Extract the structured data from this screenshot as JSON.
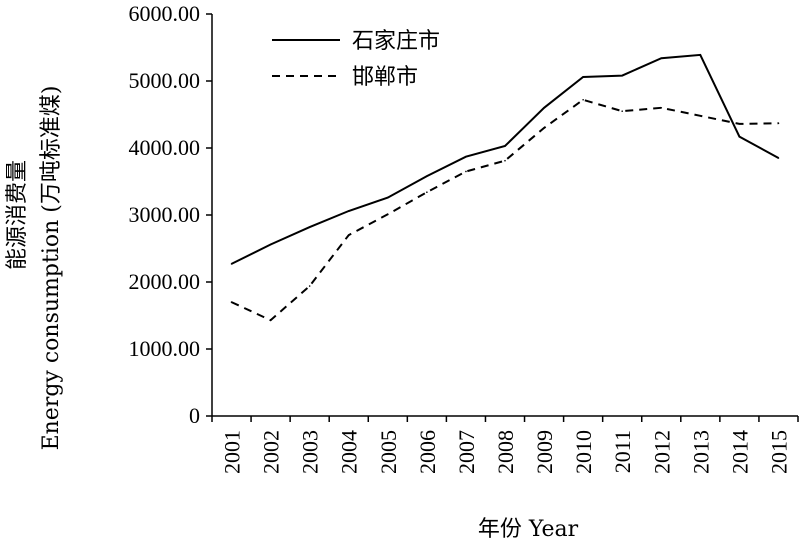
{
  "chart_data": {
    "type": "line",
    "xlabel": "年份 Year",
    "ylabel_cn": "能源消费量",
    "ylabel_en": "Energy consumption (万吨标准煤)",
    "ylim": [
      0,
      6000
    ],
    "y_ticks": [
      "0",
      "1000.00",
      "2000.00",
      "3000.00",
      "4000.00",
      "5000.00",
      "6000.00"
    ],
    "categories": [
      "2001",
      "2002",
      "2003",
      "2004",
      "2005",
      "2006",
      "2007",
      "2008",
      "2009",
      "2010",
      "2011",
      "2012",
      "2013",
      "2014",
      "2015"
    ],
    "legend_position": "top-left",
    "grid": false,
    "series": [
      {
        "name": "石家庄市",
        "style": "solid",
        "color": "#000000",
        "values": [
          2270,
          2560,
          2820,
          3060,
          3260,
          3580,
          3870,
          4030,
          4600,
          5060,
          5080,
          5340,
          5390,
          4170,
          3850
        ]
      },
      {
        "name": "邯郸市",
        "style": "dashed",
        "color": "#000000",
        "values": [
          1700,
          1430,
          1940,
          2700,
          3010,
          3340,
          3650,
          3810,
          4300,
          4720,
          4550,
          4600,
          4480,
          4360,
          4370
        ]
      }
    ]
  }
}
